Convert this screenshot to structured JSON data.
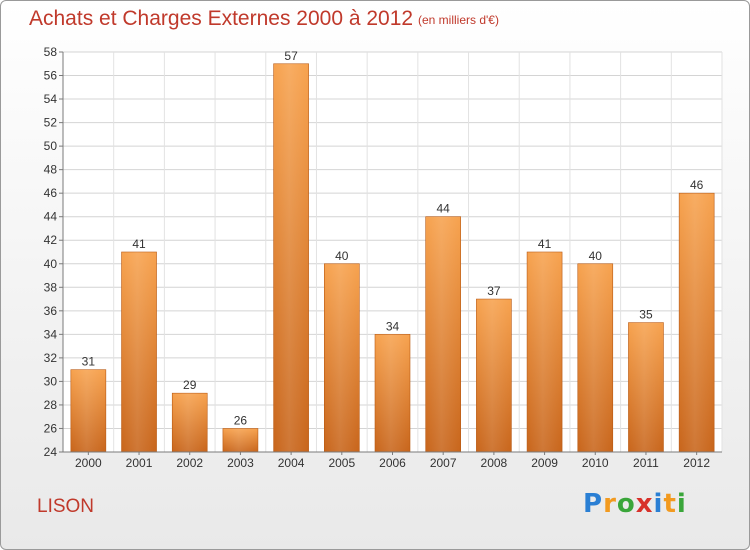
{
  "header": {
    "title": "Achats et Charges Externes 2000 à 2012",
    "subtitle": "(en milliers d'€)"
  },
  "footer": {
    "commune": "LISON",
    "logo_letters": [
      "P",
      "r",
      "o",
      "x",
      "i",
      "t",
      "i"
    ],
    "logo_colors": [
      "#2a7fd4",
      "#f29a1f",
      "#3aa63a",
      "#d8312a",
      "#2a7fd4",
      "#f29a1f",
      "#3aa63a"
    ]
  },
  "chart_data": {
    "type": "bar",
    "categories": [
      "2000",
      "2001",
      "2002",
      "2003",
      "2004",
      "2005",
      "2006",
      "2007",
      "2008",
      "2009",
      "2010",
      "2011",
      "2012"
    ],
    "values": [
      31,
      41,
      29,
      26,
      57,
      40,
      34,
      44,
      37,
      41,
      40,
      35,
      46
    ],
    "ylim": [
      24,
      58
    ],
    "yticks": [
      24,
      26,
      28,
      30,
      32,
      34,
      36,
      38,
      40,
      42,
      44,
      46,
      48,
      50,
      52,
      54,
      56,
      58
    ],
    "grid": true,
    "bar_color_top": "#f7a24e",
    "bar_color_bottom": "#c8651b"
  }
}
